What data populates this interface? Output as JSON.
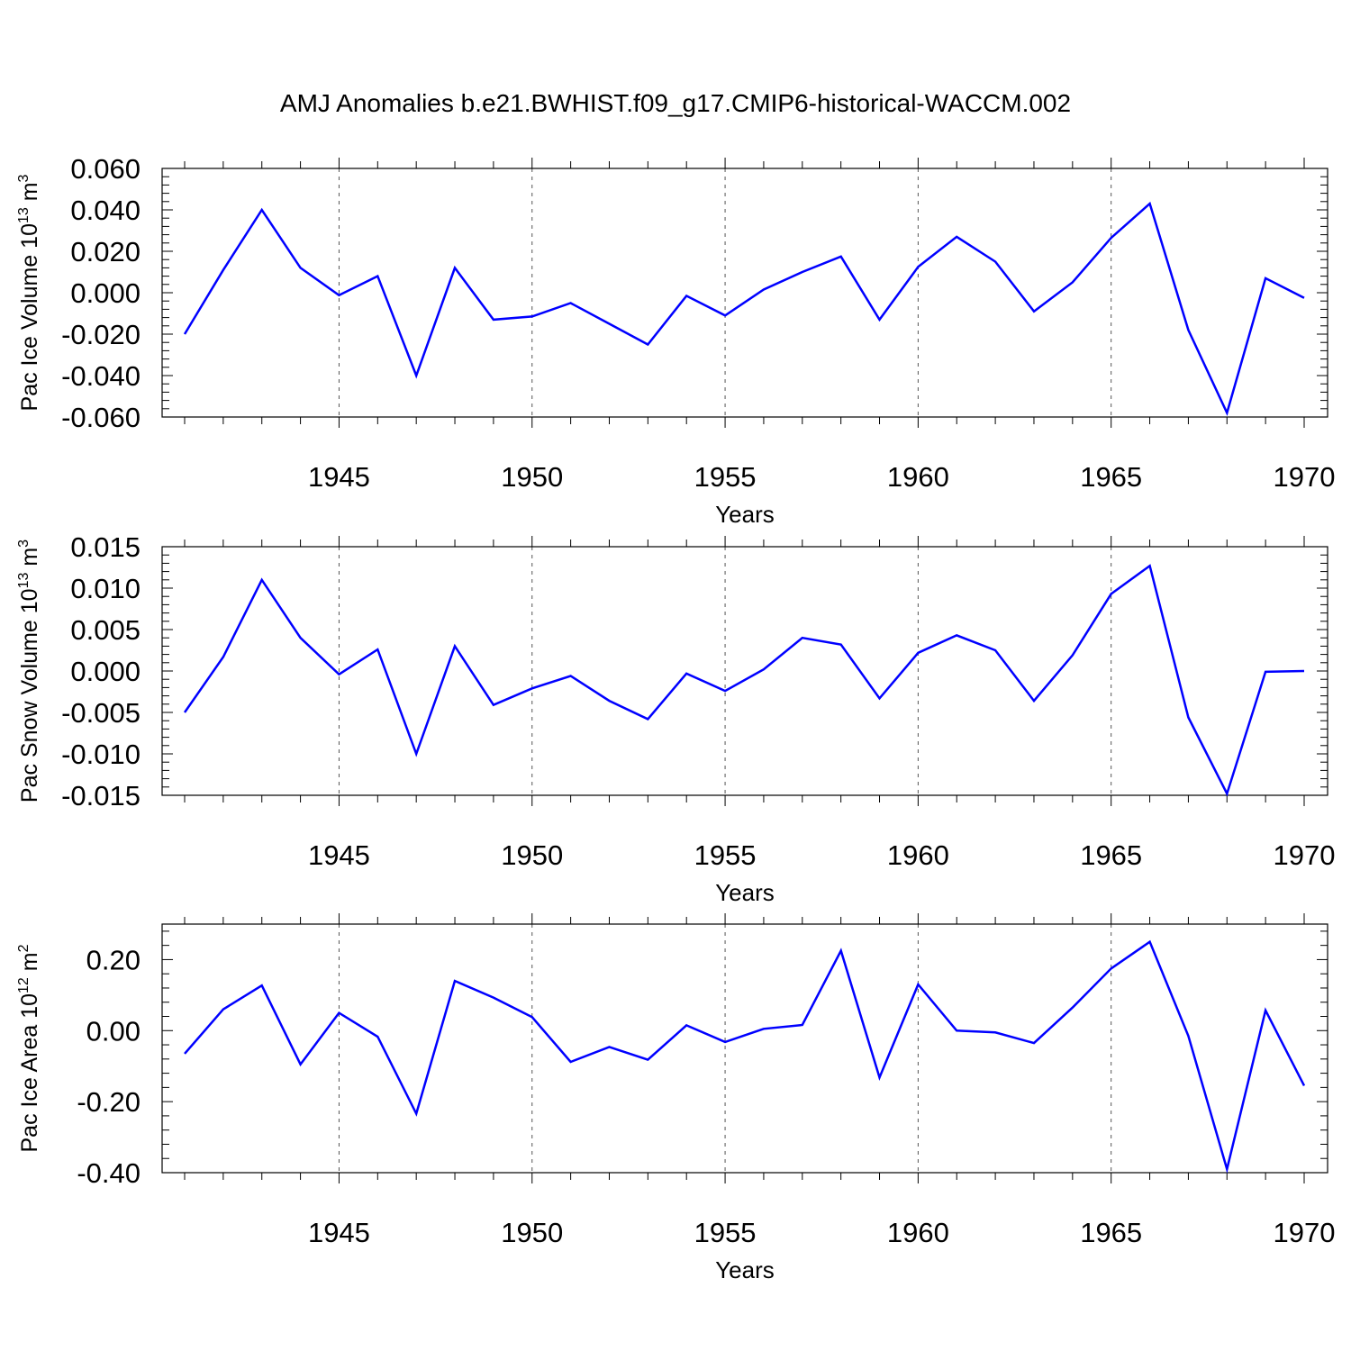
{
  "figure_title": "AMJ Anomalies b.e21.BWHIST.f09_g17.CMIP6-historical-WACCM.002",
  "colors": {
    "series": "#0000ff",
    "axes": "#000000",
    "grid": "#555555"
  },
  "chart_data": [
    {
      "type": "line",
      "ylabel_main": "Pac Ice Volume 10",
      "ylabel_exp": "13",
      "ylabel_unit": " m",
      "ylabel_unit_exp": "3",
      "xlabel": "Years",
      "xlim": [
        1941,
        1970
      ],
      "ylim": [
        -0.06,
        0.06
      ],
      "yticks": [
        {
          "value": 0.06,
          "label": "0.060"
        },
        {
          "value": 0.04,
          "label": "0.040"
        },
        {
          "value": 0.02,
          "label": "0.020"
        },
        {
          "value": 0.0,
          "label": "0.000"
        },
        {
          "value": -0.02,
          "label": "-0.020"
        },
        {
          "value": -0.04,
          "label": "-0.040"
        },
        {
          "value": -0.06,
          "label": "-0.060"
        }
      ],
      "xticks": [
        {
          "value": 1945,
          "label": "1945"
        },
        {
          "value": 1950,
          "label": "1950"
        },
        {
          "value": 1955,
          "label": "1955"
        },
        {
          "value": 1960,
          "label": "1960"
        },
        {
          "value": 1965,
          "label": "1965"
        },
        {
          "value": 1970,
          "label": "1970"
        }
      ],
      "grid": "vertical-dashed",
      "x": [
        1941,
        1942,
        1943,
        1944,
        1945,
        1946,
        1947,
        1948,
        1949,
        1950,
        1951,
        1952,
        1953,
        1954,
        1955,
        1956,
        1957,
        1958,
        1959,
        1960,
        1961,
        1962,
        1963,
        1964,
        1965,
        1966,
        1967,
        1968,
        1969,
        1970
      ],
      "y": [
        -0.02,
        0.011,
        0.04,
        0.012,
        -0.0012,
        0.008,
        -0.04,
        0.012,
        -0.013,
        -0.0115,
        -0.005,
        -0.015,
        -0.025,
        -0.0015,
        -0.011,
        0.0015,
        0.01,
        0.0175,
        -0.013,
        0.0125,
        0.027,
        0.015,
        -0.009,
        0.005,
        0.0265,
        0.043,
        -0.018,
        -0.058,
        0.007,
        -0.0025
      ]
    },
    {
      "type": "line",
      "ylabel_main": "Pac Snow Volume 10",
      "ylabel_exp": "13",
      "ylabel_unit": " m",
      "ylabel_unit_exp": "3",
      "xlabel": "Years",
      "xlim": [
        1941,
        1970
      ],
      "ylim": [
        -0.015,
        0.015
      ],
      "yticks": [
        {
          "value": 0.015,
          "label": "0.015"
        },
        {
          "value": 0.01,
          "label": "0.010"
        },
        {
          "value": 0.005,
          "label": "0.005"
        },
        {
          "value": 0.0,
          "label": "0.000"
        },
        {
          "value": -0.005,
          "label": "-0.005"
        },
        {
          "value": -0.01,
          "label": "-0.010"
        },
        {
          "value": -0.015,
          "label": "-0.015"
        }
      ],
      "xticks": [
        {
          "value": 1945,
          "label": "1945"
        },
        {
          "value": 1950,
          "label": "1950"
        },
        {
          "value": 1955,
          "label": "1955"
        },
        {
          "value": 1960,
          "label": "1960"
        },
        {
          "value": 1965,
          "label": "1965"
        },
        {
          "value": 1970,
          "label": "1970"
        }
      ],
      "grid": "vertical-dashed",
      "x": [
        1941,
        1942,
        1943,
        1944,
        1945,
        1946,
        1947,
        1948,
        1949,
        1950,
        1951,
        1952,
        1953,
        1954,
        1955,
        1956,
        1957,
        1958,
        1959,
        1960,
        1961,
        1962,
        1963,
        1964,
        1965,
        1966,
        1967,
        1968,
        1969,
        1970
      ],
      "y": [
        -0.005,
        0.0017,
        0.011,
        0.004,
        -0.0004,
        0.0026,
        -0.01,
        0.003,
        -0.0041,
        -0.0021,
        -0.0006,
        -0.0036,
        -0.0058,
        -0.0003,
        -0.0024,
        0.0002,
        0.004,
        0.0032,
        -0.0033,
        0.0022,
        0.0043,
        0.0025,
        -0.0036,
        0.0019,
        0.0093,
        0.0127,
        -0.0056,
        -0.0148,
        -0.0001,
        0.0
      ]
    },
    {
      "type": "line",
      "ylabel_main": "Pac Ice Area 10",
      "ylabel_exp": "12",
      "ylabel_unit": " m",
      "ylabel_unit_exp": "2",
      "xlabel": "Years",
      "xlim": [
        1941,
        1970
      ],
      "ylim": [
        -0.4,
        0.3
      ],
      "yticks": [
        {
          "value": 0.2,
          "label": "0.20"
        },
        {
          "value": 0.0,
          "label": "0.00"
        },
        {
          "value": -0.2,
          "label": "-0.20"
        },
        {
          "value": -0.4,
          "label": "-0.40"
        }
      ],
      "xticks": [
        {
          "value": 1945,
          "label": "1945"
        },
        {
          "value": 1950,
          "label": "1950"
        },
        {
          "value": 1955,
          "label": "1955"
        },
        {
          "value": 1960,
          "label": "1960"
        },
        {
          "value": 1965,
          "label": "1965"
        },
        {
          "value": 1970,
          "label": "1970"
        }
      ],
      "grid": "vertical-dashed",
      "x": [
        1941,
        1942,
        1943,
        1944,
        1945,
        1946,
        1947,
        1948,
        1949,
        1950,
        1951,
        1952,
        1953,
        1954,
        1955,
        1956,
        1957,
        1958,
        1959,
        1960,
        1961,
        1962,
        1963,
        1964,
        1965,
        1966,
        1967,
        1968,
        1969,
        1970
      ],
      "y": [
        -0.065,
        0.06,
        0.127,
        -0.095,
        0.05,
        -0.017,
        -0.234,
        0.14,
        0.093,
        0.038,
        -0.088,
        -0.046,
        -0.082,
        0.015,
        -0.032,
        0.005,
        0.016,
        0.225,
        -0.132,
        0.13,
        0.0,
        -0.005,
        -0.035,
        0.065,
        0.175,
        0.25,
        -0.015,
        -0.39,
        0.057,
        -0.155
      ]
    }
  ]
}
